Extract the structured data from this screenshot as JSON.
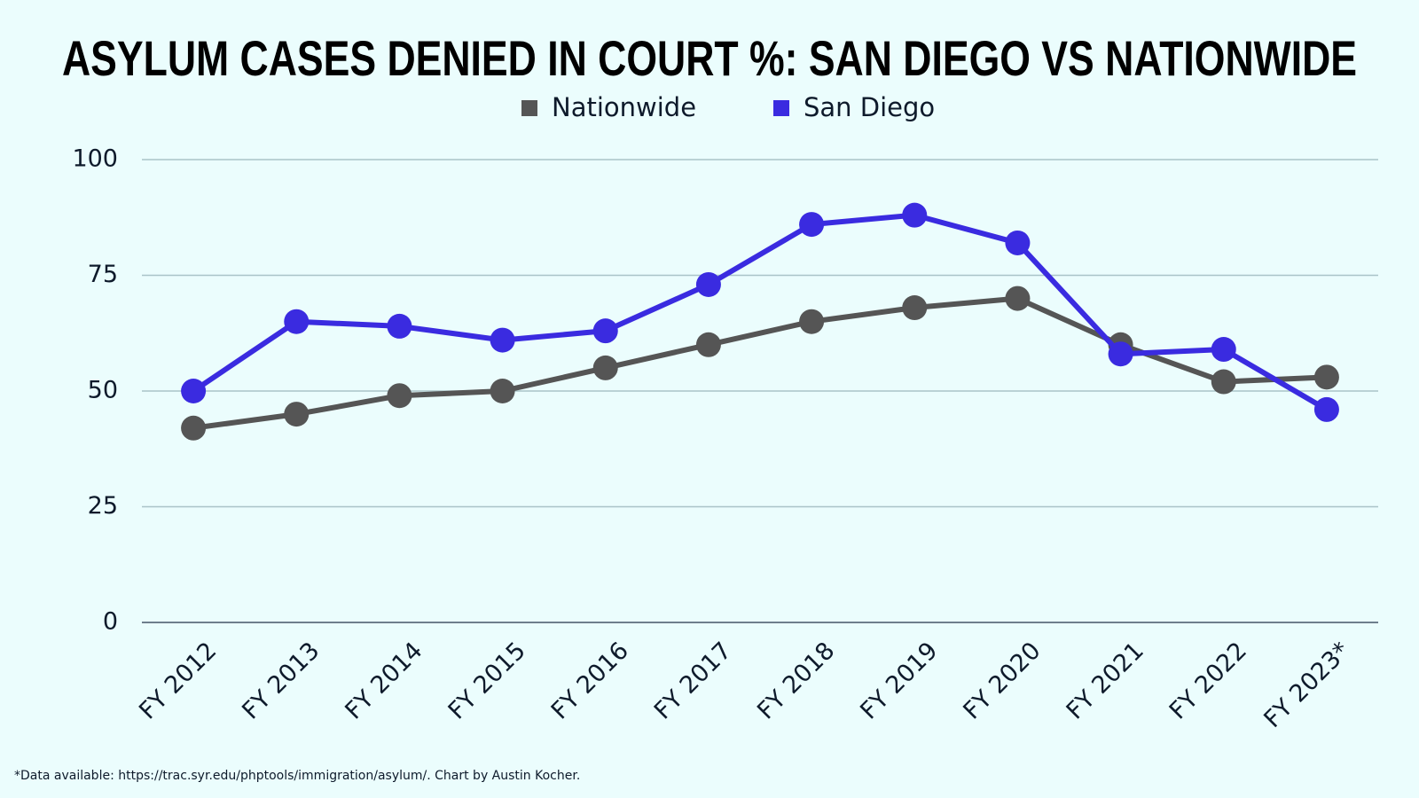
{
  "chart_data": {
    "type": "line",
    "title": "ASYLUM CASES DENIED IN COURT %: SAN DIEGO VS NATIONWIDE",
    "footnote": "*Data available: https://trac.syr.edu/phptools/immigration/asylum/. Chart by Austin Kocher.",
    "categories": [
      "FY 2012",
      "FY 2013",
      "FY 2014",
      "FY 2015",
      "FY 2016",
      "FY 2017",
      "FY 2018",
      "FY 2019",
      "FY 2020",
      "FY 2021",
      "FY 2022",
      "FY 2023*"
    ],
    "series": [
      {
        "name": "Nationwide",
        "color": "#555555",
        "values": [
          42,
          45,
          49,
          50,
          55,
          60,
          65,
          68,
          70,
          60,
          52,
          53
        ]
      },
      {
        "name": "San Diego",
        "color": "#3a2be0",
        "values": [
          50,
          65,
          64,
          61,
          63,
          73,
          86,
          88,
          82,
          58,
          59,
          46
        ]
      }
    ],
    "ylim": [
      0,
      100
    ],
    "yticks": [
      0,
      25,
      50,
      75,
      100
    ],
    "grid": true,
    "legend": "top"
  }
}
